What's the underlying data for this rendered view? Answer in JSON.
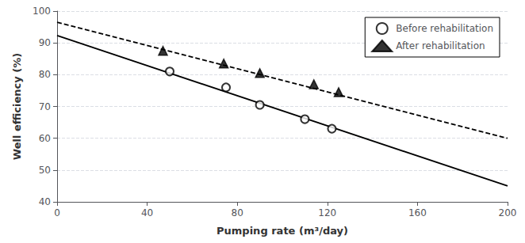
{
  "chart_data": {
    "type": "scatter",
    "xlabel": "Pumping rate (m³/day)",
    "ylabel": "Well efficiency (%)",
    "xlim": [
      0,
      200
    ],
    "ylim": [
      40,
      100
    ],
    "xticks": [
      0,
      40,
      80,
      120,
      160,
      200
    ],
    "yticks": [
      40,
      50,
      60,
      70,
      80,
      90,
      100
    ],
    "grid": "y",
    "legend": "upper right",
    "series": [
      {
        "name": "Before rehabilitation",
        "type": "scatter",
        "marker": "emptyCircle",
        "color": "#000000",
        "x": [
          50,
          75,
          90,
          110,
          122
        ],
        "values": [
          81.0,
          76.0,
          70.5,
          66.0,
          63.0
        ]
      },
      {
        "name": "After rehabilitation",
        "type": "scatter",
        "marker": "triangle",
        "color": "#000000",
        "x": [
          47,
          74,
          90,
          114,
          125
        ],
        "values": [
          87.5,
          83.5,
          80.5,
          77.0,
          74.5
        ]
      },
      {
        "type": "line",
        "line_style": "solid",
        "color": "#000000",
        "x": [
          0,
          200
        ],
        "values": [
          92.3,
          45.0
        ]
      },
      {
        "type": "line",
        "line_style": "dashed",
        "color": "#000000",
        "x": [
          0,
          200
        ],
        "values": [
          96.5,
          60.0
        ]
      }
    ]
  }
}
